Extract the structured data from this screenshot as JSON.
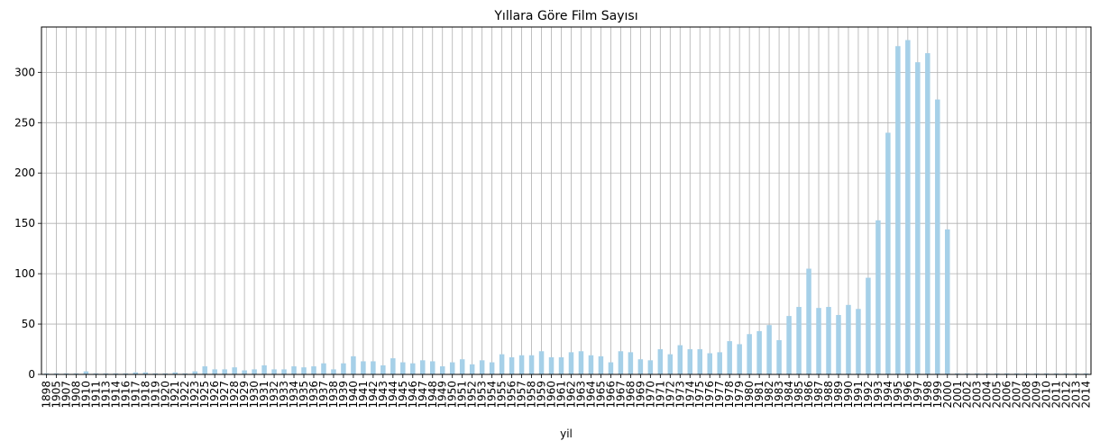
{
  "chart_data": {
    "type": "bar",
    "title": "Yıllara Göre Film Sayısı",
    "xlabel": "yil",
    "ylabel": "",
    "ylim": [
      0,
      345
    ],
    "yticks": [
      0,
      50,
      100,
      150,
      200,
      250,
      300
    ],
    "grid": true,
    "bar_color": "#a6d0e8",
    "categories": [
      "1898",
      "1905",
      "1907",
      "1908",
      "1910",
      "1911",
      "1913",
      "1914",
      "1916",
      "1917",
      "1918",
      "1919",
      "1920",
      "1921",
      "1922",
      "1923",
      "1925",
      "1926",
      "1927",
      "1928",
      "1929",
      "1930",
      "1931",
      "1932",
      "1933",
      "1934",
      "1935",
      "1936",
      "1937",
      "1938",
      "1939",
      "1940",
      "1941",
      "1942",
      "1943",
      "1944",
      "1945",
      "1946",
      "1947",
      "1948",
      "1949",
      "1950",
      "1951",
      "1952",
      "1953",
      "1954",
      "1955",
      "1956",
      "1957",
      "1958",
      "1959",
      "1960",
      "1961",
      "1962",
      "1963",
      "1964",
      "1965",
      "1966",
      "1967",
      "1968",
      "1969",
      "1970",
      "1971",
      "1972",
      "1973",
      "1974",
      "1975",
      "1976",
      "1977",
      "1978",
      "1979",
      "1980",
      "1981",
      "1982",
      "1983",
      "1984",
      "1985",
      "1986",
      "1987",
      "1988",
      "1989",
      "1990",
      "1991",
      "1992",
      "1993",
      "1994",
      "1995",
      "1996",
      "1997",
      "1998",
      "1999",
      "2000",
      "2001",
      "2002",
      "2003",
      "2004",
      "2005",
      "2006",
      "2007",
      "2008",
      "2009",
      "2010",
      "2011",
      "2012",
      "2013",
      "2014"
    ],
    "values": [
      1,
      1,
      1,
      1,
      3,
      1,
      1,
      1,
      1,
      2,
      2,
      1,
      1,
      2,
      1,
      3,
      8,
      5,
      5,
      7,
      4,
      5,
      9,
      5,
      5,
      8,
      7,
      8,
      11,
      5,
      11,
      18,
      13,
      13,
      9,
      16,
      12,
      11,
      14,
      13,
      8,
      12,
      15,
      10,
      14,
      12,
      20,
      17,
      19,
      19,
      23,
      17,
      17,
      22,
      23,
      19,
      18,
      12,
      23,
      22,
      15,
      14,
      25,
      20,
      29,
      25,
      25,
      21,
      22,
      33,
      30,
      40,
      43,
      49,
      34,
      58,
      67,
      105,
      66,
      67,
      59,
      69,
      65,
      96,
      153,
      240,
      326,
      332,
      310,
      319,
      273,
      144,
      1,
      1,
      1,
      1,
      1,
      1,
      1,
      1,
      1,
      1,
      1,
      1,
      1,
      1
    ]
  }
}
